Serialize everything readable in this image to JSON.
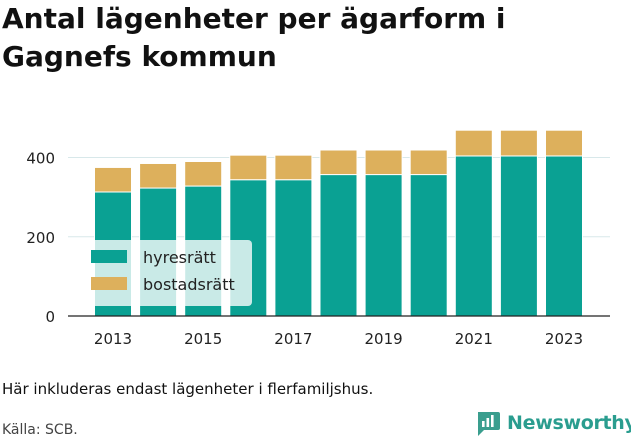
{
  "title": "Antal lägenheter per ägarform i Gagnefs kommun",
  "note": "Här inkluderas endast lägenheter i flerfamiljshus.",
  "source": "Källa: SCB.",
  "brand": {
    "name": "Newsworthy",
    "icon": "newsworthy-logo-icon",
    "color": "#3a9e8e"
  },
  "chart_data": {
    "type": "bar",
    "stacked": true,
    "x": [
      2013,
      2014,
      2015,
      2016,
      2017,
      2018,
      2019,
      2020,
      2021,
      2022,
      2023
    ],
    "x_tick_labels": [
      "2013",
      "2015",
      "2017",
      "2019",
      "2021",
      "2023"
    ],
    "series": [
      {
        "name": "hyresrätt",
        "color": "#0aa193",
        "values": [
          313,
          323,
          328,
          344,
          344,
          357,
          357,
          357,
          404,
          404,
          404
        ]
      },
      {
        "name": "bostadsrätt",
        "color": "#ddb05c",
        "values": [
          62,
          62,
          62,
          62,
          62,
          62,
          62,
          62,
          65,
          65,
          65
        ]
      }
    ],
    "ylim": [
      0,
      520
    ],
    "y_ticks": [
      0,
      200,
      400
    ],
    "xlabel": "",
    "ylabel": "",
    "grid": "horizontal",
    "legend_position": "bottom-left"
  }
}
